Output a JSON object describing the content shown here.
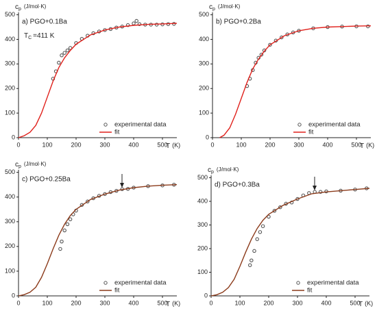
{
  "chart_data": [
    {
      "type": "line",
      "title": "a) PGO+0.1Ba",
      "annotation": {
        "symbol": "T",
        "subscript": "C",
        "text": "=411 K"
      },
      "y_label": {
        "symbol": "c",
        "subscript": "p",
        "unit": "(J/mol·K)"
      },
      "x_label": {
        "symbol": "T",
        "unit": "(K)"
      },
      "xlim": [
        0,
        550
      ],
      "ylim": [
        0,
        510
      ],
      "xticks": [
        0,
        100,
        200,
        300,
        400,
        500
      ],
      "yticks": [
        0,
        100,
        200,
        300,
        400,
        500
      ],
      "legend": "lower right",
      "series": [
        {
          "name": "experimental data",
          "type": "scatter",
          "color": "#555555",
          "x": [
            120,
            130,
            140,
            150,
            160,
            170,
            180,
            200,
            220,
            240,
            260,
            280,
            300,
            320,
            340,
            360,
            380,
            400,
            410,
            420,
            440,
            460,
            480,
            500,
            520,
            540
          ],
          "values": [
            240,
            270,
            305,
            335,
            345,
            355,
            365,
            385,
            402,
            415,
            425,
            432,
            438,
            442,
            448,
            452,
            458,
            465,
            475,
            462,
            460,
            460,
            460,
            461,
            462,
            463
          ]
        },
        {
          "name": "fit",
          "type": "line",
          "color": "#e0201b",
          "x": [
            0,
            20,
            40,
            60,
            80,
            100,
            120,
            140,
            160,
            180,
            200,
            250,
            300,
            350,
            400,
            450,
            500,
            550
          ],
          "values": [
            0,
            8,
            22,
            50,
            100,
            165,
            230,
            285,
            325,
            355,
            380,
            418,
            438,
            450,
            457,
            461,
            463,
            465
          ]
        }
      ]
    },
    {
      "type": "line",
      "title": "b) PGO+0.2Ba",
      "y_label": {
        "symbol": "c",
        "subscript": "p",
        "unit": "(J/mol·K)"
      },
      "x_label": {
        "symbol": "T",
        "unit": "(K)"
      },
      "xlim": [
        0,
        550
      ],
      "ylim": [
        0,
        510
      ],
      "xticks": [
        0,
        100,
        200,
        300,
        400,
        500
      ],
      "yticks": [
        0,
        100,
        200,
        300,
        400,
        500
      ],
      "legend": "lower right",
      "series": [
        {
          "name": "experimental data",
          "type": "scatter",
          "color": "#555555",
          "x": [
            120,
            130,
            140,
            150,
            160,
            170,
            180,
            200,
            220,
            240,
            260,
            280,
            300,
            350,
            400,
            450,
            500,
            540
          ],
          "values": [
            210,
            240,
            275,
            305,
            325,
            338,
            355,
            378,
            395,
            408,
            420,
            428,
            435,
            445,
            450,
            452,
            453,
            453
          ]
        },
        {
          "name": "fit",
          "type": "line",
          "color": "#e0201b",
          "x": [
            25,
            40,
            60,
            80,
            100,
            120,
            140,
            160,
            180,
            200,
            250,
            300,
            350,
            400,
            450,
            500,
            550
          ],
          "values": [
            0,
            10,
            40,
            95,
            160,
            225,
            280,
            320,
            352,
            378,
            415,
            435,
            445,
            450,
            452,
            454,
            455
          ]
        }
      ]
    },
    {
      "type": "line",
      "title": "c) PGO+0.25Ba",
      "y_label": {
        "symbol": "c",
        "subscript": "p",
        "unit": "(J/mol·K)"
      },
      "x_label": {
        "symbol": "T",
        "unit": "(K)"
      },
      "xlim": [
        0,
        550
      ],
      "ylim": [
        0,
        510
      ],
      "xticks": [
        0,
        100,
        200,
        300,
        400,
        500
      ],
      "yticks": [
        0,
        100,
        200,
        300,
        400,
        500
      ],
      "legend": "lower right",
      "series": [
        {
          "name": "experimental data",
          "type": "scatter",
          "color": "#555555",
          "x": [
            145,
            150,
            160,
            170,
            180,
            190,
            200,
            220,
            240,
            260,
            280,
            300,
            320,
            340,
            360,
            380,
            400,
            450,
            500,
            540
          ],
          "values": [
            190,
            220,
            265,
            290,
            310,
            330,
            345,
            368,
            382,
            395,
            405,
            412,
            420,
            425,
            432,
            433,
            438,
            444,
            447,
            450
          ]
        },
        {
          "name": "fit",
          "type": "line",
          "color": "#8b3a1a",
          "x": [
            0,
            20,
            40,
            60,
            80,
            100,
            120,
            140,
            160,
            180,
            200,
            250,
            300,
            350,
            400,
            450,
            500,
            550
          ],
          "values": [
            0,
            5,
            15,
            35,
            75,
            130,
            190,
            245,
            290,
            325,
            350,
            390,
            412,
            428,
            438,
            444,
            448,
            450
          ]
        }
      ]
    },
    {
      "type": "line",
      "title": "d) PGO+0.3Ba",
      "y_label": {
        "symbol": "c",
        "subscript": "p",
        "unit": "(J/mol·K)"
      },
      "x_label": {
        "symbol": "T",
        "unit": "(K)"
      },
      "xlim": [
        0,
        550
      ],
      "ylim": [
        0,
        510
      ],
      "xticks": [
        0,
        100,
        200,
        300,
        400,
        500
      ],
      "yticks": [
        0,
        100,
        200,
        300,
        400,
        500
      ],
      "legend": "lower right",
      "series": [
        {
          "name": "experimental data",
          "type": "scatter",
          "color": "#555555",
          "x": [
            135,
            140,
            150,
            160,
            170,
            180,
            200,
            220,
            240,
            260,
            280,
            300,
            320,
            340,
            360,
            380,
            400,
            450,
            500,
            540
          ],
          "values": [
            130,
            150,
            190,
            240,
            270,
            295,
            335,
            360,
            375,
            390,
            395,
            410,
            425,
            435,
            440,
            440,
            442,
            445,
            450,
            455
          ]
        },
        {
          "name": "fit",
          "type": "line",
          "color": "#8b3a1a",
          "x": [
            0,
            20,
            40,
            60,
            80,
            100,
            120,
            140,
            160,
            180,
            200,
            250,
            300,
            350,
            400,
            450,
            500,
            550
          ],
          "values": [
            0,
            5,
            15,
            35,
            70,
            125,
            185,
            240,
            285,
            320,
            345,
            383,
            410,
            432,
            440,
            445,
            450,
            455
          ]
        }
      ]
    }
  ]
}
